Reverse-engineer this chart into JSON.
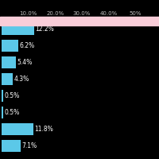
{
  "values": [
    12.2,
    6.2,
    5.4,
    4.3,
    0.5,
    0.5,
    11.8,
    7.1
  ],
  "labels": [
    "12.2%",
    "6.2%",
    "5.4%",
    "4.3%",
    "0.5%",
    "0.5%",
    "11.8%",
    "7.1%"
  ],
  "bar_color": "#5BC8E8",
  "top_bar_color": "#F9CDD8",
  "background_color": "#000000",
  "text_color": "#ffffff",
  "tick_color": "#bbbbbb",
  "xlim": [
    0,
    50
  ],
  "xticks": [
    10.0,
    20.0,
    30.0,
    40.0,
    50.0
  ],
  "xtick_labels": [
    "10.0%",
    "20.0%",
    "30.0%",
    "40.0%",
    "50%"
  ],
  "bar_height": 0.7,
  "label_fontsize": 5.5,
  "tick_fontsize": 5.0,
  "figsize": [
    2.0,
    2.0
  ],
  "dpi": 100
}
